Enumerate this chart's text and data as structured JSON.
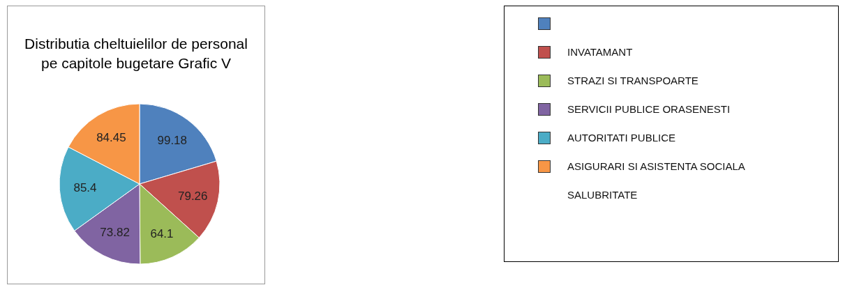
{
  "chart_data": {
    "type": "pie",
    "title": "Distributia cheltuielilor de personal pe capitole bugetare Grafic V",
    "categories": [
      null,
      "INVATAMANT",
      "STRAZI SI TRANSPOARTE",
      "SERVICII PUBLICE ORASENESTI",
      "AUTORITATI PUBLICE",
      "ASIGURARI SI ASISTENTA SOCIALA"
    ],
    "values": [
      99.18,
      79.26,
      64.1,
      73.82,
      85.4,
      84.45
    ],
    "colors": [
      "#4f81bd",
      "#c0504d",
      "#9bbb59",
      "#8064a2",
      "#4bacc6",
      "#f79646"
    ],
    "data_labels": true,
    "legend": "right",
    "annotations": [
      "SALUBRITATE"
    ]
  }
}
